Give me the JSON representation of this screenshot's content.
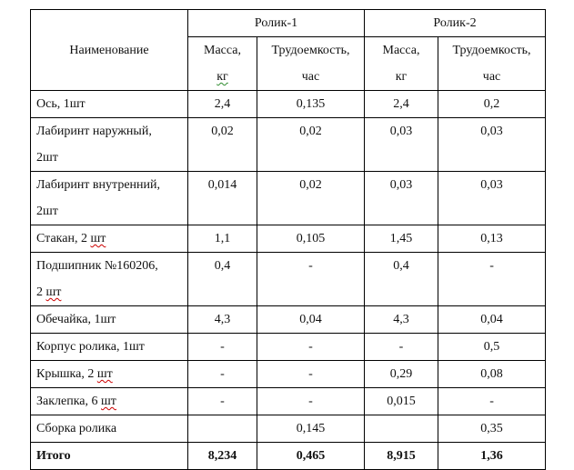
{
  "table": {
    "header": {
      "name_col": "Наименование",
      "groups": [
        {
          "label": "Ролик-1",
          "mass_label": "Масса,",
          "mass_unit": "кг",
          "labor_label": "Трудоемкость,",
          "labor_unit": "час"
        },
        {
          "label": "Ролик-2",
          "mass_label": "Масса,",
          "mass_unit": "кг",
          "labor_label": "Трудоемкость,",
          "labor_unit": "час"
        }
      ]
    },
    "rows": [
      {
        "name_line1": "Ось, 1шт",
        "name_line2": "",
        "r1_mass": "2,4",
        "r1_labor": "0,135",
        "r2_mass": "2,4",
        "r2_labor": "0,2"
      },
      {
        "name_line1": "Лабиринт наружный,",
        "name_line2": "2шт",
        "r1_mass": "0,02",
        "r1_labor": "0,02",
        "r2_mass": "0,03",
        "r2_labor": "0,03"
      },
      {
        "name_line1": "Лабиринт внутренний,",
        "name_line2": "2шт",
        "r1_mass": "0,014",
        "r1_labor": "0,02",
        "r2_mass": "0,03",
        "r2_labor": "0,03"
      },
      {
        "name_line1": "Стакан, 2 ",
        "name_spell": "шт",
        "name_line2": "",
        "r1_mass": "1,1",
        "r1_labor": "0,105",
        "r2_mass": "1,45",
        "r2_labor": "0,13"
      },
      {
        "name_line1": "Подшипник №160206,",
        "name_line2": "2 ",
        "name_line2_spell": "шт",
        "r1_mass": "0,4",
        "r1_labor": "-",
        "r2_mass": "0,4",
        "r2_labor": "-"
      },
      {
        "name_line1": "Обечайка, 1шт",
        "name_line2": "",
        "r1_mass": "4,3",
        "r1_labor": "0,04",
        "r2_mass": "4,3",
        "r2_labor": "0,04"
      },
      {
        "name_line1": "Корпус ролика, 1шт",
        "name_line2": "",
        "r1_mass": "-",
        "r1_labor": "-",
        "r2_mass": "-",
        "r2_labor": "0,5"
      },
      {
        "name_line1": "Крышка, 2 ",
        "name_spell": "шт",
        "name_line2": "",
        "r1_mass": "-",
        "r1_labor": "-",
        "r2_mass": "0,29",
        "r2_labor": "0,08"
      },
      {
        "name_line1": "Заклепка, 6 ",
        "name_spell": "шт",
        "name_line2": "",
        "r1_mass": "-",
        "r1_labor": "-",
        "r2_mass": "0,015",
        "r2_labor": "-"
      },
      {
        "name_line1": "Сборка ролика",
        "name_line2": "",
        "r1_mass": "",
        "r1_labor": "0,145",
        "r2_mass": "",
        "r2_labor": "0,35"
      }
    ],
    "total": {
      "name": "Итого",
      "r1_mass": "8,234",
      "r1_labor": "0,465",
      "r2_mass": "8,915",
      "r2_labor": "1,36"
    }
  }
}
